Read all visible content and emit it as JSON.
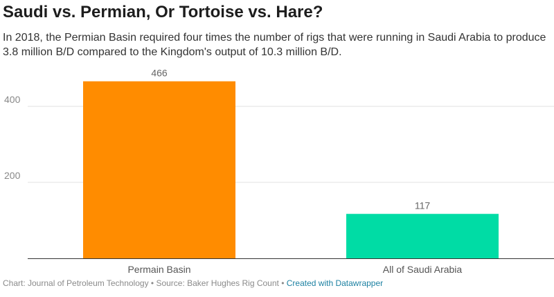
{
  "title": "Saudi vs. Permian, Or Tortoise vs. Hare?",
  "subtitle": "In 2018, the Permian Basin required four times the number of rigs that were running in Saudi Arabia to produce 3.8 million B/D compared to the Kingdom's output of 10.3 million B/D.",
  "chart_data": {
    "type": "bar",
    "categories": [
      "Permain Basin",
      "All of Saudi Arabia"
    ],
    "values": [
      466,
      117
    ],
    "value_labels": [
      "466",
      "117"
    ],
    "colors": [
      "#ff8c00",
      "#00dca5"
    ],
    "y_ticks": [
      200,
      400
    ],
    "y_tick_labels": [
      "200",
      "400"
    ],
    "ylim": [
      0,
      480
    ],
    "grid": true,
    "title": "Saudi vs. Permian, Or Tortoise vs. Hare?",
    "xlabel": "",
    "ylabel": ""
  },
  "footer": {
    "chart_credit": "Chart: Journal of Petroleum Technology",
    "separator": " • ",
    "source": "Source: Baker Hughes Rig Count",
    "created_with": "Created with Datawrapper"
  }
}
